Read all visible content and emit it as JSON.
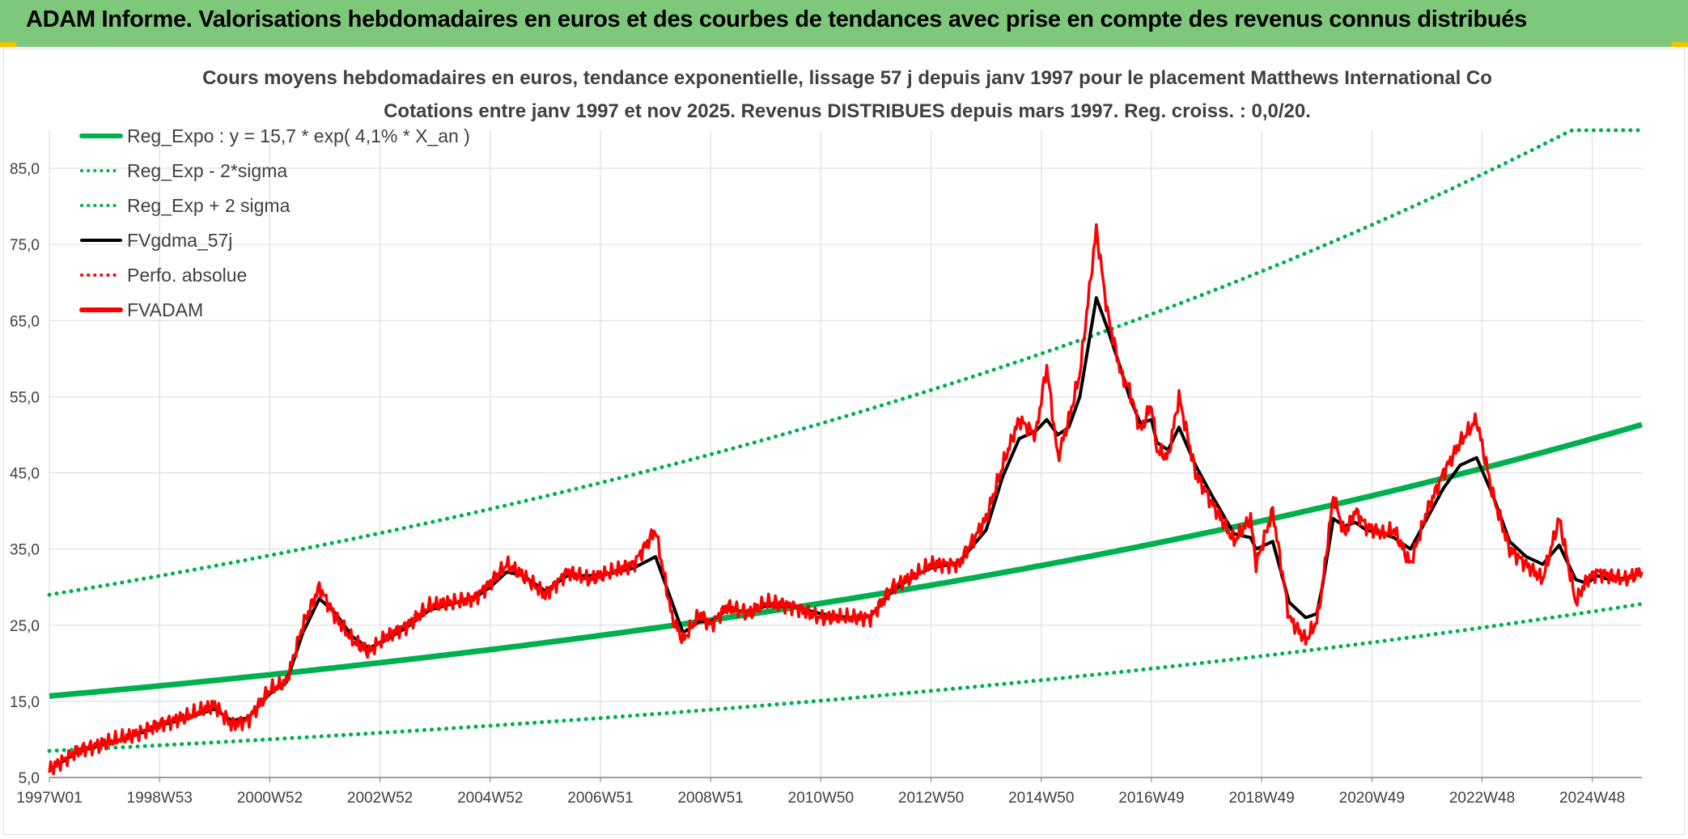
{
  "header": {
    "title": "ADAM Informe. Valorisations hebdomadaires en euros et des courbes de tendances avec prise en compte des revenus connus distribués"
  },
  "colors": {
    "banner": "#7dc87a",
    "regression": "#00b050",
    "price": "#ff0000",
    "smooth": "#000000"
  },
  "chart_data": {
    "type": "line",
    "title": "Cours moyens hebdomadaires en euros, tendance exponentielle, lissage 57 j depuis janv 1997 pour le placement Matthews International Co",
    "subtitle": "Cotations entre janv 1997 et nov 2025. Revenus DISTRIBUES depuis mars 1997. Reg. croiss. : 0,0/20.",
    "xlabel": "",
    "ylabel": "",
    "xlim": [
      1997.0,
      2025.9
    ],
    "ylim": [
      5,
      90
    ],
    "y_ticks": [
      "85,0",
      "75,0",
      "65,0",
      "55,0",
      "45,0",
      "35,0",
      "25,0",
      "15,0",
      "5,0"
    ],
    "y_tick_values": [
      85,
      75,
      65,
      55,
      45,
      35,
      25,
      15,
      5
    ],
    "x_ticks": [
      "1997W01",
      "1998W53",
      "2000W52",
      "2002W52",
      "2004W52",
      "2006W51",
      "2008W51",
      "2010W50",
      "2012W50",
      "2014W50",
      "2016W49",
      "2018W49",
      "2020W49",
      "2022W48",
      "2024W48"
    ],
    "x_tick_values": [
      1997.0,
      1999.0,
      2001.0,
      2003.0,
      2005.0,
      2007.0,
      2009.0,
      2011.0,
      2013.0,
      2015.0,
      2017.0,
      2019.0,
      2021.0,
      2023.0,
      2025.0
    ],
    "legend": [
      {
        "label": "Reg_Expo : y = 15,7 * exp( 4,1% *  X_an )",
        "color": "#00b050",
        "style": "solid-thick"
      },
      {
        "label": "Reg_Exp - 2*sigma",
        "color": "#00b050",
        "style": "dotted"
      },
      {
        "label": "Reg_Exp + 2 sigma",
        "color": "#00b050",
        "style": "dotted"
      },
      {
        "label": "FVgdma_57j",
        "color": "#000000",
        "style": "solid"
      },
      {
        "label": "Perfo. absolue",
        "color": "#ff0000",
        "style": "dotted"
      },
      {
        "label": "FVADAM",
        "color": "#ff0000",
        "style": "solid-thick"
      }
    ],
    "legend_position": "top-left",
    "series": [
      {
        "name": "Reg_Expo",
        "formula": "15.7*exp(0.041*t)",
        "start": 1997.0,
        "end": 2025.9
      },
      {
        "name": "Reg_Exp - 2*sigma",
        "formula": "8.5*exp(0.041*t)",
        "start": 1997.0,
        "end": 2025.9
      },
      {
        "name": "Reg_Exp + 2 sigma",
        "formula": "min(90, 29*exp(0.041*t))",
        "start": 1997.0,
        "end": 2025.9
      },
      {
        "name": "FVADAM",
        "x": [
          1997.0,
          1997.5,
          1998.0,
          1998.5,
          1999.0,
          1999.5,
          2000.0,
          2000.3,
          2000.6,
          2001.0,
          2001.3,
          2001.6,
          2001.9,
          2002.2,
          2002.5,
          2002.8,
          2003.1,
          2003.5,
          2003.9,
          2004.3,
          2004.7,
          2005.0,
          2005.3,
          2005.6,
          2006.0,
          2006.4,
          2006.8,
          2007.2,
          2007.6,
          2008.0,
          2008.3,
          2008.5,
          2008.8,
          2009.0,
          2009.3,
          2009.7,
          2010.0,
          2010.5,
          2011.0,
          2011.5,
          2011.9,
          2012.3,
          2012.7,
          2013.0,
          2013.5,
          2014.0,
          2014.3,
          2014.6,
          2014.9,
          2015.1,
          2015.3,
          2015.5,
          2015.7,
          2016.0,
          2016.2,
          2016.45,
          2016.6,
          2016.8,
          2017.0,
          2017.1,
          2017.3,
          2017.5,
          2017.8,
          2018.1,
          2018.5,
          2018.8,
          2018.9,
          2019.2,
          2019.5,
          2019.8,
          2020.0,
          2020.1,
          2020.3,
          2020.5,
          2020.7,
          2020.9,
          2021.2,
          2021.4,
          2021.7,
          2022.0,
          2022.3,
          2022.6,
          2022.9,
          2023.2,
          2023.5,
          2023.8,
          2024.1,
          2024.4,
          2024.7,
          2024.9,
          2025.1,
          2025.3,
          2025.6,
          2025.9
        ],
        "values": [
          6.0,
          8.5,
          9.5,
          10.5,
          12.0,
          13.0,
          14.5,
          12.0,
          12.5,
          16.5,
          17.5,
          25.0,
          30.0,
          26.0,
          23.0,
          21.5,
          23.5,
          25.0,
          27.5,
          28.0,
          28.5,
          30.5,
          33.0,
          31.5,
          29.0,
          32.0,
          31.0,
          32.0,
          33.0,
          37.5,
          26.0,
          23.0,
          26.5,
          25.0,
          27.5,
          26.5,
          28.0,
          27.5,
          26.0,
          26.0,
          26.0,
          30.0,
          31.5,
          33.0,
          33.0,
          39.0,
          46.0,
          52.0,
          50.0,
          59.0,
          47.0,
          52.0,
          58.0,
          77.0,
          66.0,
          58.0,
          56.0,
          50.5,
          54.0,
          48.0,
          47.0,
          55.0,
          45.0,
          41.0,
          36.0,
          39.0,
          33.0,
          40.0,
          26.0,
          23.0,
          25.5,
          30.0,
          42.0,
          37.0,
          40.0,
          38.0,
          37.0,
          37.5,
          33.0,
          40.0,
          45.0,
          49.0,
          52.0,
          42.0,
          35.0,
          33.0,
          31.0,
          39.0,
          28.0,
          31.0,
          32.0,
          31.5,
          31.0,
          32.0
        ]
      },
      {
        "name": "FVgdma_57j",
        "x": [
          1997.0,
          1997.5,
          1998.0,
          1998.5,
          1999.0,
          1999.5,
          2000.0,
          2000.3,
          2000.6,
          2001.0,
          2001.3,
          2001.6,
          2001.9,
          2002.2,
          2002.5,
          2002.8,
          2003.1,
          2003.5,
          2003.9,
          2004.3,
          2004.7,
          2005.0,
          2005.3,
          2005.6,
          2006.0,
          2006.4,
          2006.8,
          2007.2,
          2007.6,
          2008.0,
          2008.3,
          2008.5,
          2008.8,
          2009.0,
          2009.3,
          2009.7,
          2010.0,
          2010.5,
          2011.0,
          2011.5,
          2011.9,
          2012.3,
          2012.7,
          2013.0,
          2013.5,
          2014.0,
          2014.3,
          2014.6,
          2014.9,
          2015.1,
          2015.3,
          2015.5,
          2015.7,
          2016.0,
          2016.2,
          2016.45,
          2016.6,
          2016.8,
          2017.0,
          2017.1,
          2017.3,
          2017.5,
          2017.8,
          2018.1,
          2018.5,
          2018.8,
          2018.9,
          2019.2,
          2019.5,
          2019.8,
          2020.0,
          2020.1,
          2020.3,
          2020.5,
          2020.7,
          2020.9,
          2021.2,
          2021.4,
          2021.7,
          2022.0,
          2022.3,
          2022.6,
          2022.9,
          2023.2,
          2023.5,
          2023.8,
          2024.1,
          2024.4,
          2024.7,
          2024.9,
          2025.1,
          2025.3,
          2025.6,
          2025.9
        ],
        "values": [
          6.0,
          8.3,
          9.4,
          10.4,
          11.8,
          12.8,
          14.0,
          12.5,
          12.8,
          16.0,
          17.5,
          24.0,
          28.5,
          26.5,
          23.5,
          22.0,
          23.0,
          24.8,
          27.0,
          27.8,
          28.5,
          30.0,
          32.0,
          31.5,
          29.5,
          31.5,
          31.5,
          31.8,
          32.5,
          34.0,
          28.0,
          24.0,
          25.5,
          25.5,
          27.0,
          26.8,
          27.5,
          27.5,
          26.5,
          26.0,
          26.2,
          29.5,
          31.5,
          32.5,
          33.2,
          37.5,
          44.5,
          49.5,
          50.5,
          52.0,
          50.0,
          51.0,
          55.0,
          68.0,
          64.0,
          58.5,
          55.0,
          51.5,
          52.0,
          49.0,
          48.0,
          51.0,
          46.0,
          42.0,
          37.0,
          36.5,
          35.0,
          36.0,
          28.0,
          26.0,
          26.5,
          30.0,
          39.0,
          38.0,
          38.5,
          37.5,
          37.0,
          36.5,
          35.0,
          39.0,
          43.0,
          46.0,
          47.0,
          42.0,
          36.0,
          34.0,
          33.0,
          35.5,
          31.0,
          30.5,
          31.5,
          31.0,
          31.2,
          31.8
        ]
      }
    ]
  }
}
